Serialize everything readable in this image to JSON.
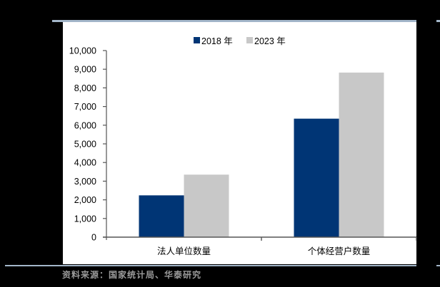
{
  "chart_data": {
    "type": "bar",
    "title": "",
    "categories": [
      "法人单位数量",
      "个体经营户数量"
    ],
    "series": [
      {
        "name": "2018 年",
        "color": "#003575",
        "values": [
          2240,
          6350
        ]
      },
      {
        "name": "2023 年",
        "color": "#c8c8c8",
        "values": [
          3350,
          8820
        ]
      }
    ],
    "xlabel": "",
    "ylabel": "",
    "ylim": [
      0,
      10000
    ],
    "yticks": [
      0,
      1000,
      2000,
      3000,
      4000,
      5000,
      6000,
      7000,
      8000,
      9000,
      10000
    ],
    "ytick_labels": [
      "0",
      "1,000",
      "2,000",
      "3,000",
      "4,000",
      "5,000",
      "6,000",
      "7,000",
      "8,000",
      "9,000",
      "10,000"
    ],
    "grid": false,
    "legend_position": "top-center"
  },
  "legend": {
    "items": [
      {
        "label": "2018 年",
        "color": "#003575"
      },
      {
        "label": "2023 年",
        "color": "#c8c8c8"
      }
    ]
  },
  "source": "资料来源：国家统计局、华泰研究"
}
